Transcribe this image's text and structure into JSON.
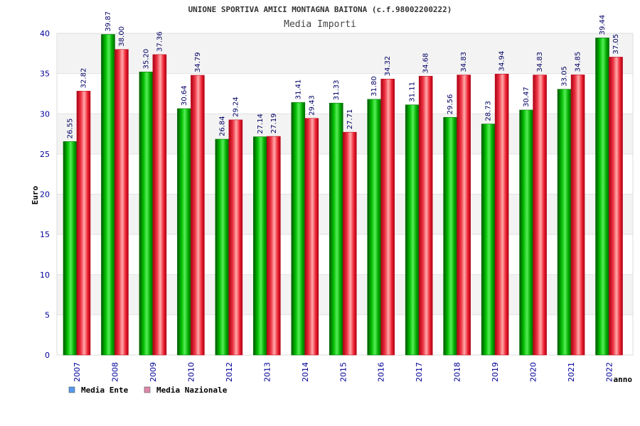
{
  "chart_data": {
    "type": "bar",
    "title": "UNIONE SPORTIVA AMICI MONTAGNA BAITONA (c.f.98002200222)",
    "subtitle": "Media Importi",
    "xlabel": "anno",
    "ylabel": "Euro",
    "ylim": [
      0,
      40
    ],
    "yticks": [
      0,
      5,
      10,
      15,
      20,
      25,
      30,
      35,
      40
    ],
    "grid": true,
    "legend_position": "bottom-left",
    "categories": [
      "2007",
      "2008",
      "2009",
      "2010",
      "2012",
      "2013",
      "2014",
      "2015",
      "2016",
      "2017",
      "2018",
      "2019",
      "2020",
      "2021",
      "2022"
    ],
    "series": [
      {
        "name": "Media Ente",
        "color": "#00aa00",
        "legend_color": "#5599ee",
        "values": [
          26.55,
          39.87,
          35.2,
          30.64,
          26.84,
          27.14,
          31.41,
          31.33,
          31.8,
          31.11,
          29.56,
          28.73,
          30.47,
          33.05,
          39.44
        ],
        "labels": [
          "26.55",
          "39.87",
          "35.20",
          "30.64",
          "26.84",
          "27.14",
          "31.41",
          "31.33",
          "31.80",
          "31.11",
          "29.56",
          "28.73",
          "30.47",
          "33.05",
          "39.44"
        ]
      },
      {
        "name": "Media Nazionale",
        "color": "#ee2233",
        "legend_color": "#dd88aa",
        "values": [
          32.82,
          38.0,
          37.36,
          34.79,
          29.24,
          27.19,
          29.43,
          27.71,
          34.32,
          34.68,
          34.83,
          34.94,
          34.83,
          34.85,
          37.05
        ],
        "labels": [
          "32.82",
          "38.00",
          "37.36",
          "34.79",
          "29.24",
          "27.19",
          "29.43",
          "27.71",
          "34.32",
          "34.68",
          "34.83",
          "34.94",
          "34.83",
          "34.85",
          "37.05"
        ]
      }
    ]
  }
}
